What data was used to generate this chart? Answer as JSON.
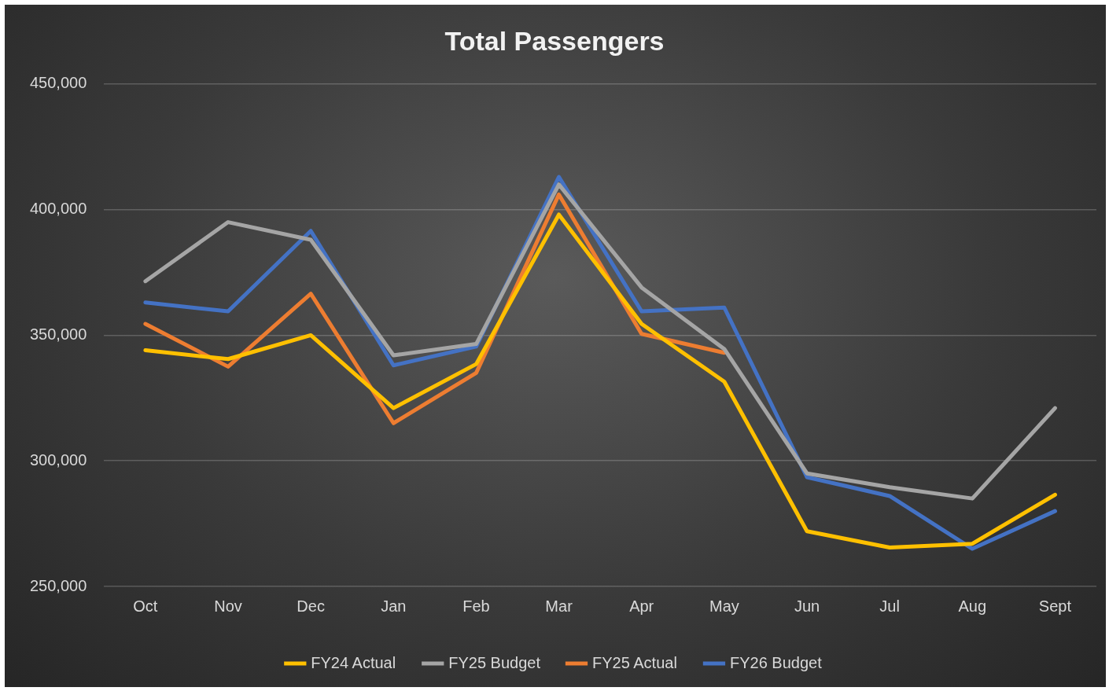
{
  "chart_data": {
    "type": "line",
    "title": "Total Passengers",
    "categories": [
      "Oct",
      "Nov",
      "Dec",
      "Jan",
      "Feb",
      "Mar",
      "Apr",
      "May",
      "Jun",
      "Jul",
      "Aug",
      "Sept"
    ],
    "series": [
      {
        "name": "FY24 Actual",
        "color": "#ffc000",
        "values": [
          344000,
          340500,
          350000,
          321000,
          338500,
          398000,
          354500,
          331500,
          272000,
          265500,
          267000,
          286500
        ]
      },
      {
        "name": "FY25 Budget",
        "color": "#a5a5a5",
        "values": [
          371500,
          395000,
          388000,
          342000,
          346500,
          410000,
          369000,
          344500,
          295000,
          289500,
          285000,
          321000
        ]
      },
      {
        "name": "FY25 Actual",
        "color": "#ed7d31",
        "values": [
          354500,
          337500,
          366500,
          315000,
          335000,
          406000,
          350500,
          343000,
          null,
          null,
          null,
          null
        ]
      },
      {
        "name": "FY26 Budget",
        "color": "#4472c4",
        "values": [
          363000,
          359500,
          391500,
          338000,
          345500,
          413000,
          359500,
          361000,
          293500,
          286000,
          265000,
          280000
        ]
      }
    ],
    "ylim": [
      250000,
      450000
    ],
    "yticks": [
      {
        "value": 250000,
        "label": "250,000"
      },
      {
        "value": 300000,
        "label": "300,000"
      },
      {
        "value": 350000,
        "label": "350,000"
      },
      {
        "value": 400000,
        "label": "400,000"
      },
      {
        "value": 450000,
        "label": "450,000"
      }
    ],
    "grid": "y",
    "legend": "bottom",
    "marker": "none",
    "line_style": "solid"
  }
}
